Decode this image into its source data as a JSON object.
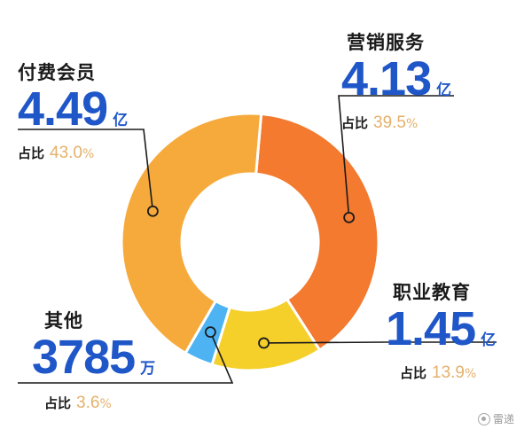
{
  "chart_data": {
    "type": "pie",
    "slices": [
      {
        "key": "marketing",
        "name": "营销服务",
        "value": "4.13",
        "unit": "亿",
        "share_label": "占比",
        "percent": "39.5",
        "pct_symbol": "%",
        "share": 39.5,
        "color": "#f37a2f"
      },
      {
        "key": "education",
        "name": "职业教育",
        "value": "1.45",
        "unit": "亿",
        "share_label": "占比",
        "percent": "13.9",
        "pct_symbol": "%",
        "share": 13.9,
        "color": "#f5cf2a"
      },
      {
        "key": "other",
        "name": "其他",
        "value": "3785",
        "unit": "万",
        "share_label": "占比",
        "percent": "3.6",
        "pct_symbol": "%",
        "share": 3.6,
        "color": "#4db3f2"
      },
      {
        "key": "membership",
        "name": "付费会员",
        "value": "4.49",
        "unit": "亿",
        "share_label": "占比",
        "percent": "43.0",
        "pct_symbol": "%",
        "share": 43.0,
        "color": "#f6aa3c"
      }
    ]
  },
  "watermark": {
    "text": "雷递",
    "icon": "camera-icon"
  }
}
